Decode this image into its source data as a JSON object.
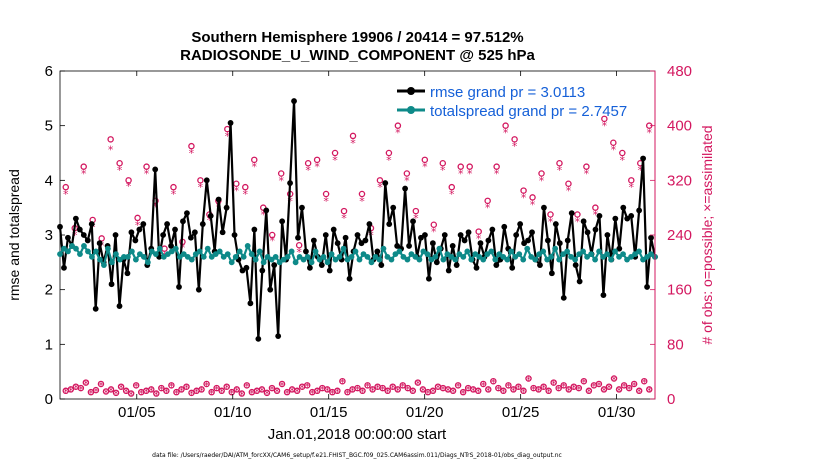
{
  "chart_data": {
    "type": "line",
    "title": "Southern Hemisphere 19906 / 20414 = 97.512%",
    "subtitle": "RADIOSONDE_U_WIND_COMPONENT @ 525 hPa",
    "xlabel": "Jan.01,2018 00:00:00 start",
    "ylabel": "rmse and totalspread",
    "y2label": "# of obs: o=possible; ×=assimilated",
    "footer": "data file: /Users/raeder/DAI/ATM_forcXX/CAM6_setup/f.e21.FHIST_BGC.f09_025.CAM6assim.011/Diags_NTrS_2018-01/obs_diag_output.nc",
    "x_ticks": [
      "01/05",
      "01/10",
      "01/15",
      "01/20",
      "01/25",
      "01/30"
    ],
    "x_tick_days": [
      5,
      10,
      15,
      20,
      25,
      30
    ],
    "xlim": [
      1,
      32
    ],
    "ylim": [
      0,
      6
    ],
    "y_ticks": [
      "0",
      "1",
      "2",
      "3",
      "4",
      "5",
      "6"
    ],
    "y2lim": [
      0,
      480
    ],
    "y2_ticks": [
      "0",
      "80",
      "160",
      "240",
      "320",
      "400",
      "480"
    ],
    "legend": [
      "rmse grand pr = 3.0113",
      "totalspread grand pr = 2.7457"
    ],
    "colors": {
      "rmse": "#000000",
      "spread": "#0e8a89",
      "obs": "#d3175f",
      "legend_text": "#1560d8"
    },
    "rmse": [
      3.15,
      2.4,
      2.95,
      2.8,
      3.3,
      3.1,
      3.0,
      2.9,
      3.2,
      1.65,
      2.85,
      2.5,
      2.8,
      2.1,
      3.0,
      1.7,
      2.55,
      2.3,
      3.05,
      2.9,
      3.1,
      3.2,
      2.45,
      2.75,
      4.2,
      2.6,
      3.0,
      3.2,
      2.8,
      3.1,
      2.05,
      3.25,
      3.4,
      2.95,
      3.05,
      2.0,
      3.2,
      4.0,
      3.35,
      2.7,
      3.65,
      3.05,
      3.5,
      5.05,
      3.0,
      2.55,
      2.35,
      2.4,
      1.75,
      3.1,
      1.1,
      2.35,
      3.45,
      2.0,
      2.45,
      1.15,
      3.25,
      2.55,
      3.95,
      5.45,
      2.95,
      3.5,
      2.7,
      2.4,
      2.9,
      2.6,
      2.45,
      3.0,
      2.35,
      3.1,
      2.85,
      2.55,
      2.95,
      2.2,
      2.7,
      3.0,
      2.85,
      2.9,
      3.2,
      2.55,
      2.7,
      2.45,
      3.95,
      3.2,
      3.5,
      2.8,
      2.75,
      3.85,
      2.8,
      3.25,
      2.6,
      2.95,
      3.0,
      2.2,
      2.85,
      2.5,
      2.75,
      3.0,
      2.35,
      2.8,
      2.45,
      3.0,
      2.9,
      3.05,
      2.55,
      2.4,
      2.85,
      2.6,
      2.9,
      3.1,
      2.45,
      2.55,
      3.15,
      2.75,
      2.4,
      3.0,
      3.2,
      2.85,
      2.9,
      3.05,
      2.55,
      2.45,
      3.5,
      2.9,
      2.3,
      3.2,
      2.85,
      1.85,
      2.9,
      3.4,
      2.45,
      2.15,
      3.25,
      3.05,
      2.65,
      3.1,
      3.35,
      1.9,
      3.0,
      2.55,
      3.3,
      2.75,
      3.5,
      3.3,
      3.35,
      2.6,
      3.45,
      4.4,
      2.05,
      2.95,
      2.6
    ],
    "spread": [
      2.65,
      2.75,
      2.7,
      2.8,
      2.75,
      2.65,
      2.8,
      2.7,
      2.6,
      2.7,
      2.55,
      2.45,
      2.75,
      2.5,
      2.65,
      2.55,
      2.6,
      2.6,
      2.7,
      2.55,
      2.65,
      2.6,
      2.5,
      2.7,
      2.65,
      2.75,
      2.6,
      2.65,
      2.7,
      2.75,
      2.6,
      2.65,
      2.6,
      2.55,
      2.65,
      2.7,
      2.6,
      2.75,
      2.6,
      2.65,
      2.7,
      2.6,
      2.65,
      2.5,
      2.6,
      2.7,
      2.6,
      2.8,
      2.65,
      2.55,
      2.7,
      2.5,
      2.6,
      2.55,
      2.6,
      2.5,
      2.55,
      2.6,
      2.7,
      2.5,
      2.6,
      2.55,
      2.6,
      2.5,
      2.7,
      2.55,
      2.6,
      2.5,
      2.65,
      2.55,
      2.6,
      2.75,
      2.55,
      2.6,
      2.7,
      2.55,
      2.65,
      2.6,
      2.5,
      2.6,
      2.55,
      2.75,
      2.6,
      2.55,
      2.65,
      2.7,
      2.6,
      2.55,
      2.65,
      2.6,
      2.55,
      2.7,
      2.65,
      2.55,
      2.6,
      2.75,
      2.55,
      2.65,
      2.6,
      2.55,
      2.65,
      2.6,
      2.7,
      2.55,
      2.65,
      2.6,
      2.55,
      2.65,
      2.7,
      2.55,
      2.65,
      2.6,
      2.55,
      2.7,
      2.6,
      2.65,
      2.55,
      2.75,
      2.6,
      2.55,
      2.65,
      2.7,
      2.55,
      2.6,
      2.75,
      2.55,
      2.65,
      2.7,
      2.6,
      2.55,
      2.65,
      2.7,
      2.6,
      2.65,
      2.55,
      2.7,
      2.6,
      2.65,
      2.55,
      2.7,
      2.6,
      2.65,
      2.55,
      2.6,
      2.65,
      2.7,
      2.55,
      2.6,
      2.65,
      2.6
    ],
    "obs_possible": [
      310,
      250,
      340,
      262,
      235,
      380,
      345,
      320,
      265,
      340,
      290,
      220,
      310,
      230,
      370,
      320,
      270,
      290,
      395,
      315,
      310,
      350,
      280,
      240,
      330,
      300,
      225,
      345,
      350,
      300,
      360,
      275,
      385,
      300,
      250,
      320,
      360,
      400,
      330,
      275,
      350,
      255,
      345,
      310,
      340,
      340,
      245,
      290,
      340,
      400,
      380,
      305,
      295,
      330,
      270,
      345,
      315,
      270,
      340,
      280,
      410,
      375,
      360,
      320,
      345,
      400
    ],
    "obs_assimilated": [
      300,
      240,
      330,
      252,
      225,
      365,
      335,
      312,
      255,
      330,
      282,
      210,
      300,
      222,
      360,
      310,
      262,
      282,
      385,
      305,
      300,
      340,
      270,
      232,
      320,
      290,
      215,
      335,
      340,
      290,
      350,
      265,
      375,
      290,
      240,
      310,
      350,
      390,
      320,
      265,
      340,
      245,
      335,
      300,
      330,
      330,
      235,
      280,
      330,
      390,
      370,
      295,
      285,
      320,
      260,
      335,
      305,
      260,
      330,
      270,
      400,
      365,
      350,
      310,
      335,
      390
    ],
    "obs_low_possible": [
      12,
      14,
      18,
      16,
      24,
      10,
      13,
      22,
      11,
      14,
      9,
      18,
      12,
      8,
      20,
      10,
      12,
      14,
      8,
      16,
      12,
      20,
      10,
      14,
      18,
      9,
      12,
      14,
      22,
      10,
      16,
      12,
      18,
      10,
      14,
      8,
      20,
      10,
      12,
      14,
      9,
      16,
      12,
      22,
      10,
      14,
      12,
      18,
      20,
      10,
      12,
      16,
      14,
      10,
      12,
      26,
      10,
      14,
      16,
      12,
      20,
      14,
      18,
      16,
      12,
      18,
      14,
      20,
      16,
      12,
      24,
      14,
      10,
      12,
      18,
      16,
      14,
      12,
      20,
      10,
      16,
      14,
      12,
      22,
      14,
      26,
      16,
      12,
      20,
      14,
      18,
      12,
      30,
      16,
      14,
      18,
      12,
      24,
      16,
      20,
      14,
      18,
      16,
      26,
      12,
      20,
      22,
      14,
      18,
      30,
      14,
      20,
      16,
      22,
      12,
      26,
      14
    ],
    "obs_low_assimilated": [
      10,
      12,
      16,
      14,
      22,
      8,
      11,
      20,
      9,
      12,
      7,
      16,
      10,
      6,
      18,
      8,
      10,
      12,
      6,
      14,
      10,
      18,
      8,
      12,
      16,
      7,
      10,
      12,
      20,
      8,
      14,
      10,
      16,
      8,
      12,
      6,
      18,
      8,
      10,
      12,
      7,
      14,
      10,
      20,
      8,
      12,
      10,
      16,
      18,
      8,
      10,
      14,
      12,
      8,
      10,
      24,
      8,
      12,
      14,
      10,
      18,
      12,
      16,
      14,
      10,
      16,
      12,
      18,
      14,
      10,
      22,
      12,
      8,
      10,
      16,
      14,
      12,
      10,
      18,
      8,
      14,
      12,
      10,
      20,
      12,
      24,
      14,
      10,
      18,
      12,
      16,
      10,
      28,
      14,
      12,
      16,
      10,
      22,
      14,
      18,
      12,
      16,
      14,
      24,
      10,
      18,
      20,
      12,
      16,
      28,
      12,
      18,
      14,
      20,
      10,
      24,
      12
    ]
  }
}
